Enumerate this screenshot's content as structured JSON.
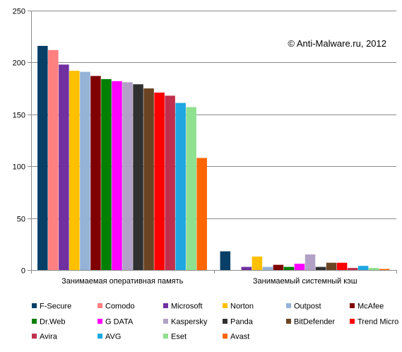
{
  "chart_data": {
    "type": "bar",
    "title": "",
    "xlabel": "",
    "ylabel": "",
    "annotation": "© Anti-Malware.ru, 2012",
    "ylim": [
      0,
      250
    ],
    "yticks": [
      0,
      50,
      100,
      150,
      200,
      250
    ],
    "grid": true,
    "legend_position": "bottom",
    "categories": [
      "Занимаемая оперативная память",
      "Занимаемый системный кэш"
    ],
    "series": [
      {
        "name": "F-Secure",
        "color": "#073F66",
        "values": [
          216,
          18
        ]
      },
      {
        "name": "Comodo",
        "color": "#FF8080",
        "values": [
          212,
          0
        ]
      },
      {
        "name": "Microsoft",
        "color": "#7030A0",
        "values": [
          198,
          3
        ]
      },
      {
        "name": "Norton",
        "color": "#FFC000",
        "values": [
          192,
          13
        ]
      },
      {
        "name": "Outpost",
        "color": "#95B3D7",
        "values": [
          191,
          3
        ]
      },
      {
        "name": "McAfee",
        "color": "#800000",
        "values": [
          187,
          5
        ]
      },
      {
        "name": "Dr.Web",
        "color": "#008000",
        "values": [
          184,
          3
        ]
      },
      {
        "name": "G DATA",
        "color": "#FF00FF",
        "values": [
          182,
          6
        ]
      },
      {
        "name": "Kaspersky",
        "color": "#B2A1C7",
        "values": [
          181,
          15
        ]
      },
      {
        "name": "Panda",
        "color": "#303030",
        "values": [
          179,
          3
        ]
      },
      {
        "name": "BitDefender",
        "color": "#6B4423",
        "values": [
          175,
          7
        ]
      },
      {
        "name": "Trend Micro",
        "color": "#FF0000",
        "values": [
          171,
          7
        ]
      },
      {
        "name": "Avira",
        "color": "#C0304D",
        "values": [
          168,
          2
        ]
      },
      {
        "name": "AVG",
        "color": "#1EA7E1",
        "values": [
          161,
          4
        ]
      },
      {
        "name": "Eset",
        "color": "#8FE08F",
        "values": [
          157,
          2
        ]
      },
      {
        "name": "Avast",
        "color": "#FF6600",
        "values": [
          108,
          1
        ]
      }
    ]
  }
}
